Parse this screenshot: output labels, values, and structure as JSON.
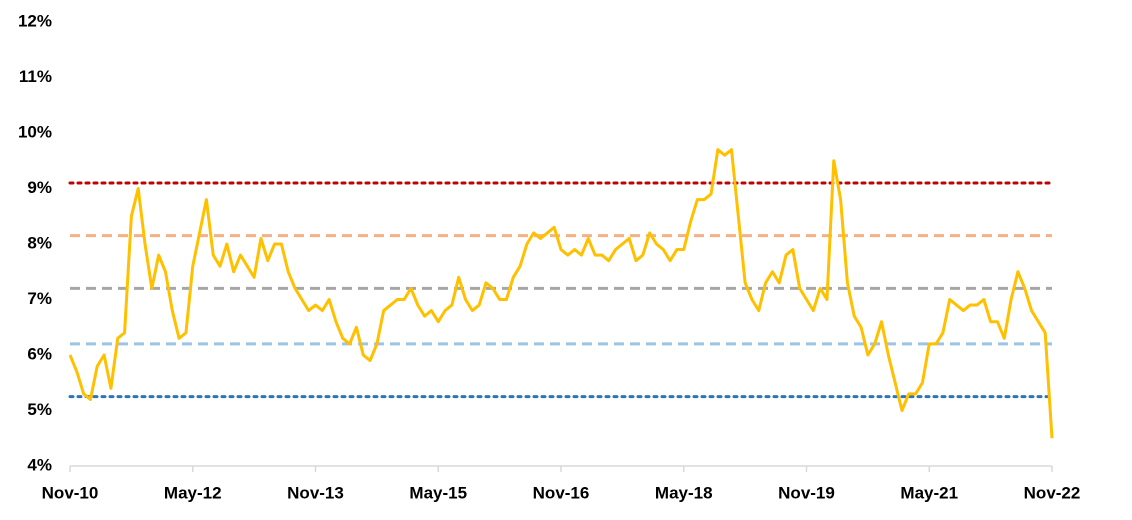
{
  "chart_data": {
    "type": "line",
    "categories": [
      "Nov-10",
      null,
      null,
      null,
      null,
      null,
      null,
      null,
      null,
      null,
      null,
      null,
      null,
      null,
      null,
      null,
      null,
      null,
      "May-12",
      null,
      null,
      null,
      null,
      null,
      null,
      null,
      null,
      null,
      null,
      null,
      null,
      null,
      null,
      null,
      null,
      null,
      "Nov-13",
      null,
      null,
      null,
      null,
      null,
      null,
      null,
      null,
      null,
      null,
      null,
      null,
      null,
      null,
      null,
      null,
      null,
      "May-15",
      null,
      null,
      null,
      null,
      null,
      null,
      null,
      null,
      null,
      null,
      null,
      null,
      null,
      null,
      null,
      null,
      null,
      "Nov-16",
      null,
      null,
      null,
      null,
      null,
      null,
      null,
      null,
      null,
      null,
      null,
      null,
      null,
      null,
      null,
      null,
      null,
      "May-18",
      null,
      null,
      null,
      null,
      null,
      null,
      null,
      null,
      null,
      null,
      null,
      null,
      null,
      null,
      null,
      null,
      null,
      "Nov-19",
      null,
      null,
      null,
      null,
      null,
      null,
      null,
      null,
      null,
      null,
      null,
      null,
      null,
      null,
      null,
      null,
      null,
      "May-21",
      null,
      null,
      null,
      null,
      null,
      null,
      null,
      null,
      null,
      null,
      null,
      null,
      null,
      null,
      null,
      null,
      null,
      "Nov-22"
    ],
    "series": [
      {
        "color": "#ffc000",
        "values": [
          6.0,
          5.7,
          5.3,
          5.2,
          5.8,
          6.0,
          5.4,
          6.3,
          6.4,
          8.5,
          9.0,
          8.0,
          7.2,
          7.8,
          7.5,
          6.8,
          6.3,
          6.4,
          7.6,
          8.2,
          8.8,
          7.8,
          7.6,
          8.0,
          7.5,
          7.8,
          7.6,
          7.4,
          8.1,
          7.7,
          8.0,
          8.0,
          7.5,
          7.2,
          7.0,
          6.8,
          6.9,
          6.8,
          7.0,
          6.6,
          6.3,
          6.2,
          6.5,
          6.0,
          5.9,
          6.2,
          6.8,
          6.9,
          7.0,
          7.0,
          7.2,
          6.9,
          6.7,
          6.8,
          6.6,
          6.8,
          6.9,
          7.4,
          7.0,
          6.8,
          6.9,
          7.3,
          7.2,
          7.0,
          7.0,
          7.4,
          7.6,
          8.0,
          8.2,
          8.1,
          8.2,
          8.3,
          7.9,
          7.8,
          7.9,
          7.8,
          8.1,
          7.8,
          7.8,
          7.7,
          7.9,
          8.0,
          8.1,
          7.7,
          7.8,
          8.2,
          8.0,
          7.9,
          7.7,
          7.9,
          7.9,
          8.4,
          8.8,
          8.8,
          8.9,
          9.7,
          9.6,
          9.7,
          8.5,
          7.3,
          7.0,
          6.8,
          7.3,
          7.5,
          7.3,
          7.8,
          7.9,
          7.2,
          7.0,
          6.8,
          7.2,
          7.0,
          9.5,
          8.8,
          7.3,
          6.7,
          6.5,
          6.0,
          6.2,
          6.6,
          6.0,
          5.5,
          5.0,
          5.3,
          5.3,
          5.5,
          6.2,
          6.2,
          6.4,
          7.0,
          6.9,
          6.8,
          6.9,
          6.9,
          7.0,
          6.6,
          6.6,
          6.3,
          7.0,
          7.5,
          7.2,
          6.8,
          6.6,
          6.4,
          4.5
        ]
      }
    ],
    "reference_lines": [
      {
        "value": 9.1,
        "color": "#c00000",
        "style": "dotted"
      },
      {
        "value": 8.15,
        "color": "#f4b183",
        "style": "dashed"
      },
      {
        "value": 7.2,
        "color": "#a6a6a6",
        "style": "dashed"
      },
      {
        "value": 6.2,
        "color": "#9dc3e6",
        "style": "dashed"
      },
      {
        "value": 5.25,
        "color": "#2e75b6",
        "style": "dotted"
      }
    ],
    "ylim": [
      4,
      12
    ],
    "yticks": [
      {
        "value": 4,
        "label": "4%"
      },
      {
        "value": 5,
        "label": "5%"
      },
      {
        "value": 6,
        "label": "6%"
      },
      {
        "value": 7,
        "label": "7%"
      },
      {
        "value": 8,
        "label": "8%"
      },
      {
        "value": 9,
        "label": "9%"
      },
      {
        "value": 10,
        "label": "10%"
      },
      {
        "value": 11,
        "label": "11%"
      },
      {
        "value": 12,
        "label": "12%"
      }
    ],
    "grid": false
  }
}
